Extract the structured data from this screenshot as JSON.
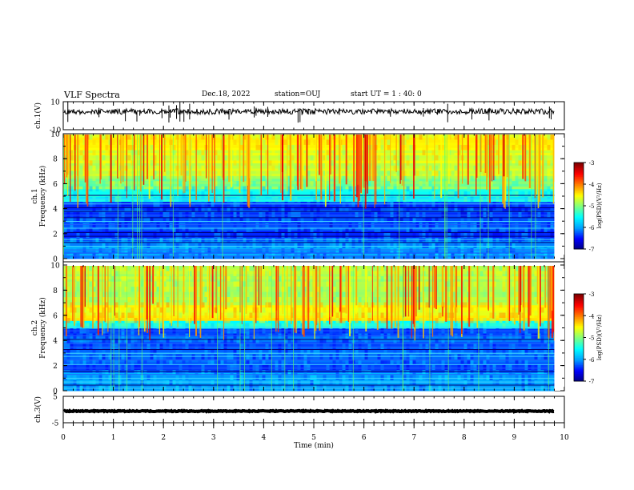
{
  "header": {
    "title": "VLF Spectra",
    "date": "Dec.18, 2022",
    "station": "station=OUJ",
    "start_ut": "start UT =  1 : 40: 0"
  },
  "chart_data": [
    {
      "type": "line",
      "name": "ch1-waveform",
      "ylabel": "ch.1(V)",
      "ylim": [
        -10,
        10
      ],
      "yticks": [
        "10",
        "-10"
      ],
      "xlim": [
        0,
        10
      ],
      "baseline": 3
    },
    {
      "type": "heatmap",
      "name": "ch1-spectrogram",
      "ylabel": "ch.1\nFrequency (kHz)",
      "ylim": [
        0,
        10
      ],
      "yticks": [
        "0",
        "2",
        "4",
        "6",
        "8",
        "10"
      ],
      "xlim": [
        0,
        10
      ],
      "colorbar": {
        "label": "log(PSD)(V²/Hz)",
        "range": [
          -7,
          -3
        ],
        "ticks": [
          "-3",
          "-4",
          "-5",
          "-6",
          "-7"
        ]
      },
      "bands": [
        {
          "range_khz": [
            0,
            4.5
          ],
          "description": "mostly blue, many horizontal line emissions"
        },
        {
          "range_khz": [
            4.5,
            6
          ],
          "description": "cyan transition"
        },
        {
          "range_khz": [
            6,
            10
          ],
          "description": "green-yellow with sferics"
        }
      ]
    },
    {
      "type": "heatmap",
      "name": "ch2-spectrogram",
      "ylabel": "ch.2\nFrequency (kHz)",
      "ylim": [
        0,
        10
      ],
      "yticks": [
        "0",
        "2",
        "4",
        "6",
        "8",
        "10"
      ],
      "xlim": [
        0,
        10
      ],
      "colorbar": {
        "label": "log(PSD)(V²/Hz)",
        "range": [
          -7,
          -3
        ],
        "ticks": [
          "-3",
          "-4",
          "-5",
          "-6",
          "-7"
        ]
      },
      "bands": [
        {
          "range_khz": [
            0,
            5
          ],
          "description": "blue with horizontal lines"
        },
        {
          "range_khz": [
            5.5,
            7
          ],
          "description": "yellow-orange band"
        },
        {
          "range_khz": [
            7,
            10
          ],
          "description": "green with sferics"
        }
      ]
    },
    {
      "type": "line",
      "name": "ch3-waveform",
      "ylabel": "ch.3(V)",
      "ylim": [
        -5,
        5
      ],
      "yticks": [
        "5",
        "-5"
      ],
      "xlim": [
        0,
        10
      ],
      "baseline": -0.6
    }
  ],
  "xaxis": {
    "label": "Time (min)",
    "ticks": [
      "0",
      "1",
      "2",
      "3",
      "4",
      "5",
      "6",
      "7",
      "8",
      "9",
      "10"
    ],
    "data_end": 9.8
  },
  "colors": {
    "colormap": [
      "#00007f",
      "#0000ff",
      "#00a0ff",
      "#00ffff",
      "#7fff7f",
      "#ffff00",
      "#ff7f00",
      "#ff0000",
      "#7f0000"
    ]
  }
}
